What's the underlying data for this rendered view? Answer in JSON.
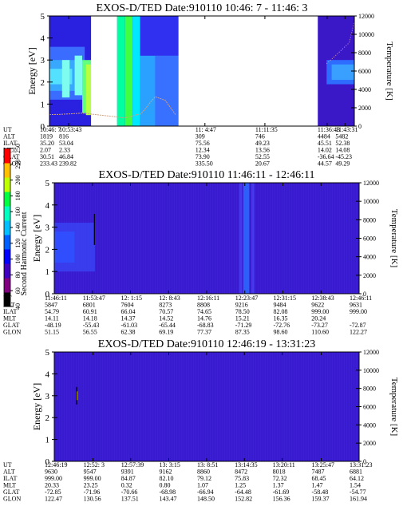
{
  "chart_data": [
    {
      "type": "heatmap",
      "title": "EXOS-D/TED   Date:910110  10:46: 7 - 11:46: 3",
      "ylabel": "Energy [eV]",
      "y2label": "Temperature [K]",
      "ylim": [
        0,
        5
      ],
      "y_ticks": [
        "0",
        "1",
        "2",
        "3",
        "4",
        "5"
      ],
      "y2lim": [
        0,
        12000
      ],
      "y2_ticks": [
        "0",
        "2000",
        "4000",
        "6000",
        "8000",
        "10000",
        "12000"
      ],
      "times_min": [
        0,
        7.6,
        61.7,
        85.5,
        110.2,
        117.3
      ],
      "data_gaps_min": [
        [
          16.5,
          26.8
        ],
        [
          51.2,
          106.5
        ]
      ],
      "temperature_trace_K": [
        [
          0,
          1250
        ],
        [
          4,
          1280
        ],
        [
          9,
          1350
        ],
        [
          13,
          1420
        ],
        [
          26.8,
          1000
        ],
        [
          29,
          900
        ],
        [
          32,
          1000
        ],
        [
          34,
          1200
        ],
        [
          36,
          1300
        ],
        [
          38,
          1850
        ],
        [
          40,
          2600
        ],
        [
          42,
          3200
        ],
        [
          46,
          2800
        ],
        [
          50,
          1250
        ],
        [
          110,
          6800
        ],
        [
          114,
          7800
        ],
        [
          119,
          9100
        ],
        [
          121,
          11400
        ]
      ],
      "ephemeris": {
        "row_labels": [
          "UT",
          "ALT",
          "ILAT",
          "MLT",
          "GLAT",
          "GLON"
        ],
        "columns": [
          [
            "10:46: 7",
            "1819",
            "35.20",
            "2.07",
            "30.51",
            "233.43"
          ],
          [
            "10:53:43",
            "816",
            "53.04",
            "2.33",
            "46.84",
            "239.82"
          ],
          [
            "11: 4:47",
            "309",
            "75.56",
            "12.34",
            "73.90",
            "335.50"
          ],
          [
            "11:11:35",
            "746",
            "49.23",
            "13.56",
            "52.55",
            "20.67"
          ],
          [
            "11:36:43",
            "4484",
            "45.51",
            "14.02",
            "-36.64",
            "44.57"
          ],
          [
            "11:43:31",
            "5482",
            "52.38",
            "14.08",
            "-45.23",
            "49.29"
          ]
        ]
      }
    },
    {
      "type": "heatmap",
      "title": "EXOS-D/TED   Date:910110  11:46:11 - 12:46:11",
      "ylabel": "Energy [eV]",
      "y2label": "Temperature [K]",
      "ylim": [
        0,
        5
      ],
      "y_ticks": [
        "0",
        "1",
        "2",
        "3",
        "4",
        "5"
      ],
      "y2lim": [
        0,
        12000
      ],
      "y2_ticks": [
        "0",
        "2000",
        "4000",
        "6000",
        "8000",
        "10000",
        "12000"
      ],
      "times_min": [
        0,
        7.5,
        15,
        22.5,
        30,
        37.5,
        45,
        52.5,
        60
      ],
      "data_gaps_min": [],
      "ephemeris": {
        "row_labels": [
          "UT",
          "ALT",
          "ILAT",
          "MLT",
          "GLAT",
          "GLON"
        ],
        "columns": [
          [
            "11:46:11",
            "5847",
            "54.79",
            "14.11",
            "-48.19",
            "51.15"
          ],
          [
            "11:53:47",
            "6801",
            "60.91",
            "14.18",
            "-55.43",
            "56.55"
          ],
          [
            "12: 1:15",
            "7604",
            "66.04",
            "14.37",
            "-61.03",
            "62.38"
          ],
          [
            "12: 8:43",
            "8273",
            "70.57",
            "14.52",
            "-65.44",
            "69.19"
          ],
          [
            "12:16:11",
            "8808",
            "74.65",
            "14.76",
            "-68.83",
            "77.37"
          ],
          [
            "12:23:47",
            "9216",
            "78.50",
            "15.21",
            "-71.29",
            "87.35"
          ],
          [
            "12:31:15",
            "9484",
            "82.08",
            "16.35",
            "-72.76",
            "98.60"
          ],
          [
            "12:38:43",
            "9622",
            "999.00",
            "20.24",
            "-73.27",
            "110.60"
          ],
          [
            "12:46:11",
            "9631",
            "999.00",
            "",
            "-72.87",
            "122.27"
          ]
        ]
      }
    },
    {
      "type": "heatmap",
      "title": "EXOS-D/TED   Date:910110  12:46:19 - 13:31:23",
      "ylabel": "Energy [eV]",
      "y2label": "Temperature [K]",
      "ylim": [
        0,
        5
      ],
      "y_ticks": [
        "0",
        "1",
        "2",
        "3",
        "4",
        "5"
      ],
      "y2lim": [
        0,
        12000
      ],
      "y2_ticks": [
        "0",
        "2000",
        "4000",
        "6000",
        "8000",
        "10000",
        "12000"
      ],
      "times_min": [
        0,
        5.73,
        11.3,
        16.93,
        22.53,
        28.1,
        33.7,
        39.47,
        45.07
      ],
      "data_gaps_min": [],
      "ephemeris": {
        "row_labels": [
          "UT",
          "ALT",
          "ILAT",
          "MLT",
          "GLAT",
          "GLON"
        ],
        "columns": [
          [
            "12:46:19",
            "9630",
            "999.00",
            "20.33",
            "-72.85",
            "122.47"
          ],
          [
            "12:52: 3",
            "9547",
            "999.00",
            "23.25",
            "-71.96",
            "130.56"
          ],
          [
            "12:57:39",
            "9391",
            "84.87",
            "0.32",
            "-70.66",
            "137.51"
          ],
          [
            "13: 3:15",
            "9162",
            "82.10",
            "0.80",
            "-68.98",
            "143.47"
          ],
          [
            "13: 8:51",
            "8860",
            "79.12",
            "1.07",
            "-66.94",
            "148.50"
          ],
          [
            "13:14:35",
            "8472",
            "75.83",
            "1.25",
            "-64.48",
            "152.82"
          ],
          [
            "13:20:11",
            "8018",
            "72.32",
            "1.37",
            "-61.69",
            "156.36"
          ],
          [
            "13:25:47",
            "7487",
            "68.45",
            "1.47",
            "-58.48",
            "159.37"
          ],
          [
            "13:31:23",
            "6881",
            "64.12",
            "1.54",
            "-54.77",
            "161.94"
          ]
        ]
      }
    }
  ],
  "colorbar": {
    "label": "Second Harmonic Current",
    "tick_labels": [
      "40",
      "60",
      "80",
      "100",
      "120",
      "140",
      "160",
      "180",
      "200",
      "220",
      "250"
    ],
    "colors": [
      "#000000",
      "#800080",
      "#4000c0",
      "#0000ff",
      "#0060ff",
      "#00c0ff",
      "#00ffc0",
      "#00ff40",
      "#c0ff00",
      "#ffc000",
      "#ff0000"
    ]
  }
}
